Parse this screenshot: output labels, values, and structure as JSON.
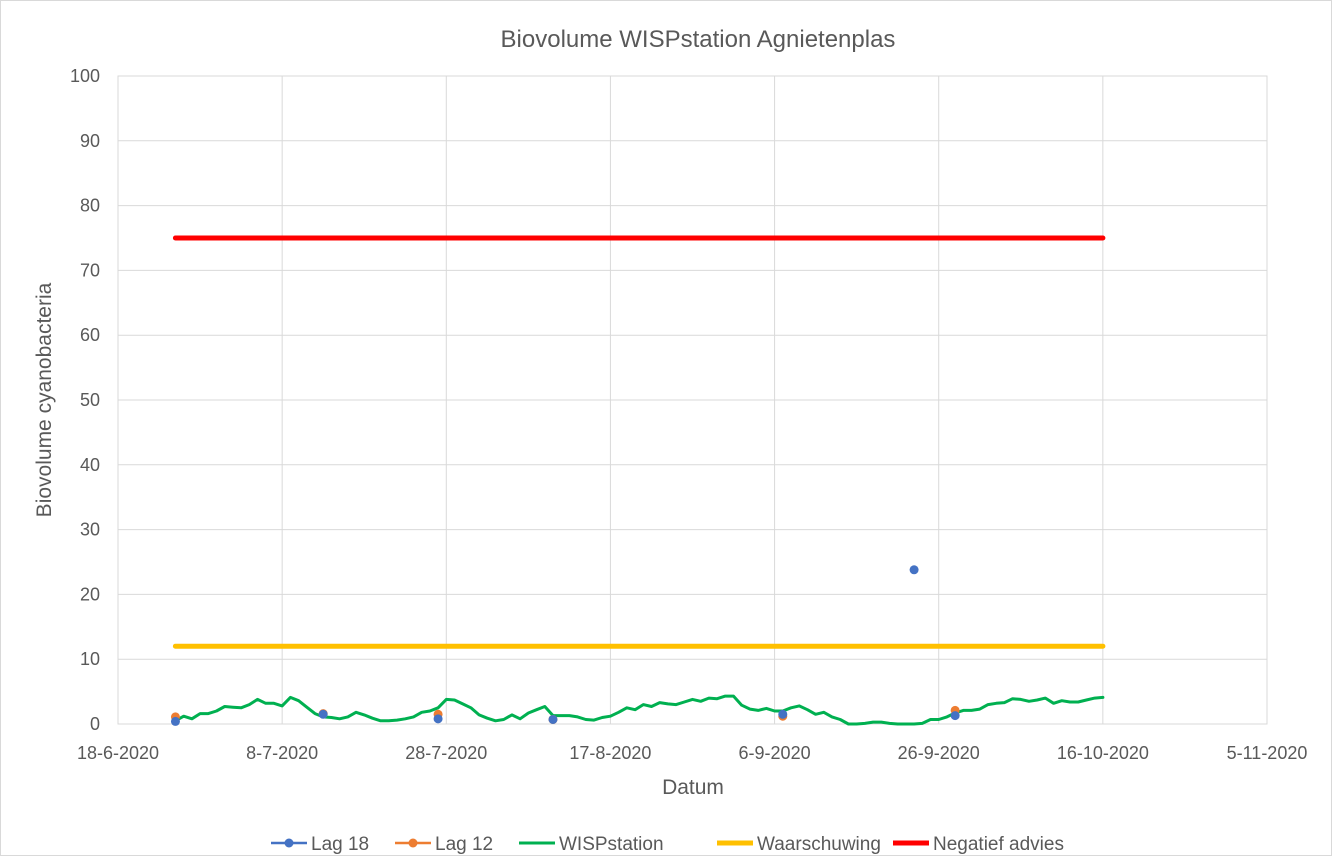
{
  "chart_data": {
    "type": "line",
    "title": "Biovolume WISPstation Agnietenplas",
    "xlabel": "Datum",
    "ylabel": "Biovolume cyanobacteria",
    "x_axis": {
      "kind": "date",
      "min": "2020-06-18",
      "max": "2020-11-05",
      "tick_dates": [
        "2020-06-18",
        "2020-07-08",
        "2020-07-28",
        "2020-08-17",
        "2020-09-06",
        "2020-09-26",
        "2020-10-16",
        "2020-11-05"
      ],
      "tick_labels": [
        "18-6-2020",
        "8-7-2020",
        "28-7-2020",
        "17-8-2020",
        "6-9-2020",
        "26-9-2020",
        "16-10-2020",
        "5-11-2020"
      ]
    },
    "ylim": [
      0,
      100
    ],
    "y_ticks": [
      0,
      10,
      20,
      30,
      40,
      50,
      60,
      70,
      80,
      90,
      100
    ],
    "grid": true,
    "legend_position": "bottom",
    "series": [
      {
        "name": "Lag 18",
        "kind": "scatter",
        "color": "#4472c4",
        "points": [
          {
            "x": "2020-06-25",
            "y": 0.4
          },
          {
            "x": "2020-07-13",
            "y": 1.5
          },
          {
            "x": "2020-07-27",
            "y": 0.8
          },
          {
            "x": "2020-08-10",
            "y": 0.7
          },
          {
            "x": "2020-09-07",
            "y": 1.5
          },
          {
            "x": "2020-09-23",
            "y": 23.8
          },
          {
            "x": "2020-09-28",
            "y": 1.3
          }
        ]
      },
      {
        "name": "Lag 12",
        "kind": "scatter",
        "color": "#ed7d31",
        "points": [
          {
            "x": "2020-06-25",
            "y": 1.1
          },
          {
            "x": "2020-07-13",
            "y": 1.6
          },
          {
            "x": "2020-07-27",
            "y": 1.5
          },
          {
            "x": "2020-08-10",
            "y": 0.7
          },
          {
            "x": "2020-09-07",
            "y": 1.2
          },
          {
            "x": "2020-09-28",
            "y": 2.1
          }
        ]
      },
      {
        "name": "WISPstation",
        "kind": "line",
        "color": "#00b050",
        "points": [
          {
            "x": "2020-06-25",
            "y": 0.5
          },
          {
            "x": "2020-06-26",
            "y": 1.2
          },
          {
            "x": "2020-06-27",
            "y": 0.8
          },
          {
            "x": "2020-06-28",
            "y": 1.6
          },
          {
            "x": "2020-06-29",
            "y": 1.6
          },
          {
            "x": "2020-06-30",
            "y": 2.0
          },
          {
            "x": "2020-07-01",
            "y": 2.7
          },
          {
            "x": "2020-07-02",
            "y": 2.6
          },
          {
            "x": "2020-07-03",
            "y": 2.5
          },
          {
            "x": "2020-07-04",
            "y": 3.0
          },
          {
            "x": "2020-07-05",
            "y": 3.8
          },
          {
            "x": "2020-07-06",
            "y": 3.2
          },
          {
            "x": "2020-07-07",
            "y": 3.2
          },
          {
            "x": "2020-07-08",
            "y": 2.8
          },
          {
            "x": "2020-07-09",
            "y": 4.1
          },
          {
            "x": "2020-07-10",
            "y": 3.6
          },
          {
            "x": "2020-07-11",
            "y": 2.6
          },
          {
            "x": "2020-07-12",
            "y": 1.6
          },
          {
            "x": "2020-07-13",
            "y": 1.1
          },
          {
            "x": "2020-07-14",
            "y": 1.0
          },
          {
            "x": "2020-07-15",
            "y": 0.8
          },
          {
            "x": "2020-07-16",
            "y": 1.1
          },
          {
            "x": "2020-07-17",
            "y": 1.8
          },
          {
            "x": "2020-07-18",
            "y": 1.4
          },
          {
            "x": "2020-07-19",
            "y": 0.9
          },
          {
            "x": "2020-07-20",
            "y": 0.5
          },
          {
            "x": "2020-07-21",
            "y": 0.5
          },
          {
            "x": "2020-07-22",
            "y": 0.6
          },
          {
            "x": "2020-07-23",
            "y": 0.8
          },
          {
            "x": "2020-07-24",
            "y": 1.1
          },
          {
            "x": "2020-07-25",
            "y": 1.8
          },
          {
            "x": "2020-07-26",
            "y": 2.0
          },
          {
            "x": "2020-07-27",
            "y": 2.5
          },
          {
            "x": "2020-07-28",
            "y": 3.8
          },
          {
            "x": "2020-07-29",
            "y": 3.7
          },
          {
            "x": "2020-07-30",
            "y": 3.1
          },
          {
            "x": "2020-07-31",
            "y": 2.5
          },
          {
            "x": "2020-08-01",
            "y": 1.4
          },
          {
            "x": "2020-08-02",
            "y": 0.9
          },
          {
            "x": "2020-08-03",
            "y": 0.5
          },
          {
            "x": "2020-08-04",
            "y": 0.7
          },
          {
            "x": "2020-08-05",
            "y": 1.4
          },
          {
            "x": "2020-08-06",
            "y": 0.8
          },
          {
            "x": "2020-08-07",
            "y": 1.7
          },
          {
            "x": "2020-08-08",
            "y": 2.2
          },
          {
            "x": "2020-08-09",
            "y": 2.7
          },
          {
            "x": "2020-08-10",
            "y": 1.3
          },
          {
            "x": "2020-08-11",
            "y": 1.3
          },
          {
            "x": "2020-08-12",
            "y": 1.3
          },
          {
            "x": "2020-08-13",
            "y": 1.1
          },
          {
            "x": "2020-08-14",
            "y": 0.7
          },
          {
            "x": "2020-08-15",
            "y": 0.6
          },
          {
            "x": "2020-08-16",
            "y": 1.0
          },
          {
            "x": "2020-08-17",
            "y": 1.2
          },
          {
            "x": "2020-08-18",
            "y": 1.8
          },
          {
            "x": "2020-08-19",
            "y": 2.5
          },
          {
            "x": "2020-08-20",
            "y": 2.2
          },
          {
            "x": "2020-08-21",
            "y": 3.0
          },
          {
            "x": "2020-08-22",
            "y": 2.7
          },
          {
            "x": "2020-08-23",
            "y": 3.3
          },
          {
            "x": "2020-08-24",
            "y": 3.1
          },
          {
            "x": "2020-08-25",
            "y": 3.0
          },
          {
            "x": "2020-08-26",
            "y": 3.4
          },
          {
            "x": "2020-08-27",
            "y": 3.8
          },
          {
            "x": "2020-08-28",
            "y": 3.5
          },
          {
            "x": "2020-08-29",
            "y": 4.0
          },
          {
            "x": "2020-08-30",
            "y": 3.9
          },
          {
            "x": "2020-08-31",
            "y": 4.3
          },
          {
            "x": "2020-09-01",
            "y": 4.3
          },
          {
            "x": "2020-09-02",
            "y": 2.9
          },
          {
            "x": "2020-09-03",
            "y": 2.3
          },
          {
            "x": "2020-09-04",
            "y": 2.1
          },
          {
            "x": "2020-09-05",
            "y": 2.4
          },
          {
            "x": "2020-09-06",
            "y": 2.0
          },
          {
            "x": "2020-09-07",
            "y": 2.0
          },
          {
            "x": "2020-09-08",
            "y": 2.5
          },
          {
            "x": "2020-09-09",
            "y": 2.8
          },
          {
            "x": "2020-09-10",
            "y": 2.2
          },
          {
            "x": "2020-09-11",
            "y": 1.5
          },
          {
            "x": "2020-09-12",
            "y": 1.8
          },
          {
            "x": "2020-09-13",
            "y": 1.1
          },
          {
            "x": "2020-09-14",
            "y": 0.7
          },
          {
            "x": "2020-09-15",
            "y": 0.0
          },
          {
            "x": "2020-09-16",
            "y": 0.0
          },
          {
            "x": "2020-09-17",
            "y": 0.1
          },
          {
            "x": "2020-09-18",
            "y": 0.3
          },
          {
            "x": "2020-09-19",
            "y": 0.3
          },
          {
            "x": "2020-09-20",
            "y": 0.1
          },
          {
            "x": "2020-09-21",
            "y": 0.0
          },
          {
            "x": "2020-09-22",
            "y": 0.0
          },
          {
            "x": "2020-09-23",
            "y": 0.0
          },
          {
            "x": "2020-09-24",
            "y": 0.1
          },
          {
            "x": "2020-09-25",
            "y": 0.7
          },
          {
            "x": "2020-09-26",
            "y": 0.7
          },
          {
            "x": "2020-09-27",
            "y": 1.1
          },
          {
            "x": "2020-09-28",
            "y": 1.7
          },
          {
            "x": "2020-09-29",
            "y": 2.1
          },
          {
            "x": "2020-09-30",
            "y": 2.1
          },
          {
            "x": "2020-10-01",
            "y": 2.3
          },
          {
            "x": "2020-10-02",
            "y": 3.0
          },
          {
            "x": "2020-10-03",
            "y": 3.2
          },
          {
            "x": "2020-10-04",
            "y": 3.3
          },
          {
            "x": "2020-10-05",
            "y": 3.9
          },
          {
            "x": "2020-10-06",
            "y": 3.8
          },
          {
            "x": "2020-10-07",
            "y": 3.5
          },
          {
            "x": "2020-10-08",
            "y": 3.7
          },
          {
            "x": "2020-10-09",
            "y": 4.0
          },
          {
            "x": "2020-10-10",
            "y": 3.2
          },
          {
            "x": "2020-10-11",
            "y": 3.6
          },
          {
            "x": "2020-10-12",
            "y": 3.4
          },
          {
            "x": "2020-10-13",
            "y": 3.4
          },
          {
            "x": "2020-10-14",
            "y": 3.7
          },
          {
            "x": "2020-10-15",
            "y": 4.0
          },
          {
            "x": "2020-10-16",
            "y": 4.1
          }
        ]
      },
      {
        "name": "Waarschuwing",
        "kind": "line",
        "color": "#ffc000",
        "points": [
          {
            "x": "2020-06-25",
            "y": 12
          },
          {
            "x": "2020-10-16",
            "y": 12
          }
        ]
      },
      {
        "name": "Negatief advies",
        "kind": "line",
        "color": "#ff0000",
        "points": [
          {
            "x": "2020-06-25",
            "y": 75
          },
          {
            "x": "2020-10-16",
            "y": 75
          }
        ]
      }
    ]
  }
}
